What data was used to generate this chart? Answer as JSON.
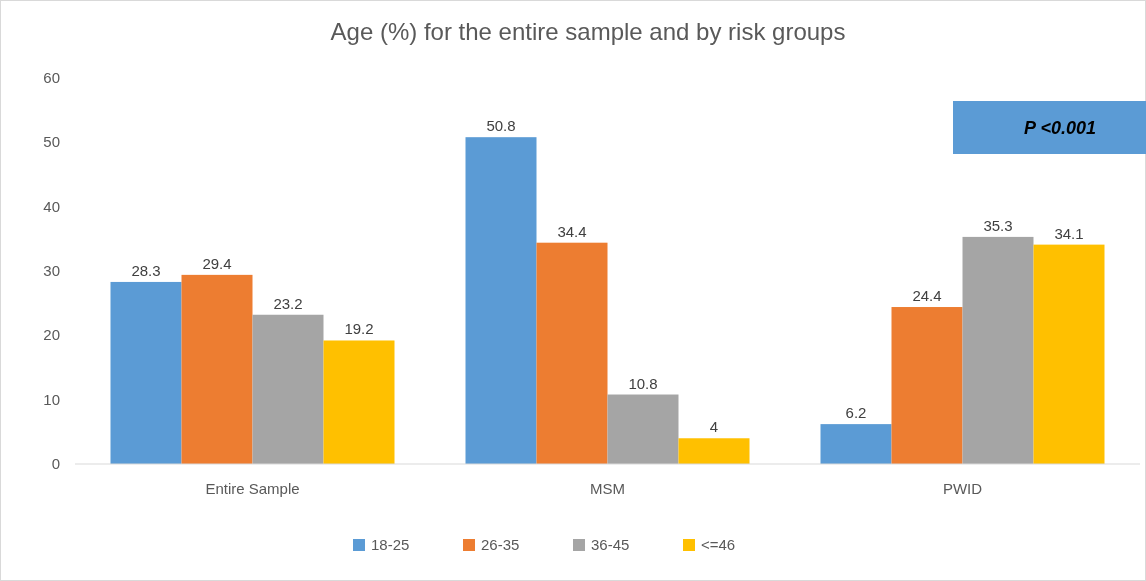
{
  "chart_data": {
    "type": "bar",
    "title": "Age (%) for the entire sample and by risk groups",
    "categories": [
      "Entire Sample",
      "MSM",
      "PWID"
    ],
    "series": [
      {
        "name": "18-25",
        "color": "#5b9bd5",
        "values": [
          28.3,
          50.8,
          6.2
        ]
      },
      {
        "name": "26-35",
        "color": "#ed7d31",
        "values": [
          29.4,
          34.4,
          24.4
        ]
      },
      {
        "name": "36-45",
        "color": "#a5a5a5",
        "values": [
          23.2,
          10.8,
          35.3
        ]
      },
      {
        "name": "<=46",
        "color": "#ffc000",
        "values": [
          19.2,
          4,
          34.1
        ]
      }
    ],
    "ylim": [
      0,
      60
    ],
    "yticks": [
      0,
      10,
      20,
      30,
      40,
      50,
      60
    ],
    "grid": false,
    "legend": "bottom",
    "data_labels": true,
    "annotations": [
      "P <0.001"
    ]
  }
}
